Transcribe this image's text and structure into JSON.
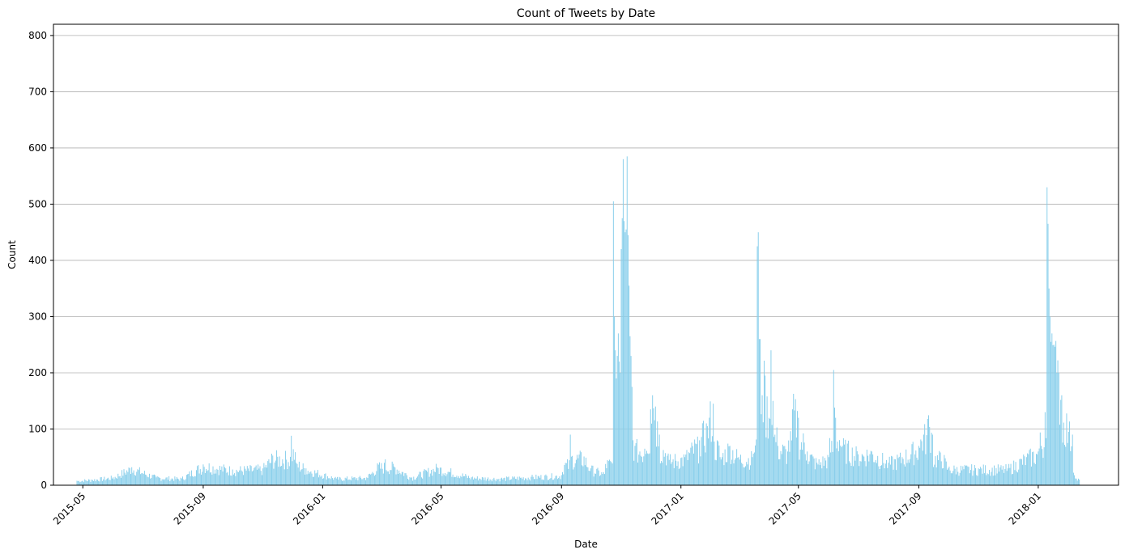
{
  "chart_data": {
    "type": "bar",
    "title": "Count of Tweets by Date",
    "xlabel": "Date",
    "ylabel": "Count",
    "ylim": [
      0,
      820
    ],
    "xlim": [
      "2015-04-01",
      "2018-03-24"
    ],
    "grid": "y",
    "bar_color": "#87ceeb",
    "y_ticks": [
      0,
      100,
      200,
      300,
      400,
      500,
      600,
      700,
      800
    ],
    "x_ticks": [
      "2015-05",
      "2015-09",
      "2016-01",
      "2016-05",
      "2016-09",
      "2017-01",
      "2017-05",
      "2017-09",
      "2018-01"
    ],
    "series": [
      {
        "name": "",
        "description_points": [
          [
            "2015-04-25",
            8
          ],
          [
            "2015-05-10",
            10
          ],
          [
            "2015-06-01",
            14
          ],
          [
            "2015-06-20",
            32
          ],
          [
            "2015-07-15",
            14
          ],
          [
            "2015-08-10",
            12
          ],
          [
            "2015-09-01",
            37
          ],
          [
            "2015-10-01",
            28
          ],
          [
            "2015-11-01",
            30
          ],
          [
            "2015-11-30",
            88
          ],
          [
            "2015-12-05",
            40
          ],
          [
            "2015-12-15",
            30
          ],
          [
            "2016-01-15",
            12
          ],
          [
            "2016-02-15",
            14
          ],
          [
            "2016-03-05",
            46
          ],
          [
            "2016-04-01",
            14
          ],
          [
            "2016-04-27",
            32
          ],
          [
            "2016-06-01",
            14
          ],
          [
            "2016-07-01",
            12
          ],
          [
            "2016-08-01",
            15
          ],
          [
            "2016-09-01",
            18
          ],
          [
            "2016-09-10",
            90
          ],
          [
            "2016-10-01",
            30
          ],
          [
            "2016-10-15",
            20
          ],
          [
            "2016-10-24",
            505
          ],
          [
            "2016-10-25",
            300
          ],
          [
            "2016-10-26",
            240
          ],
          [
            "2016-10-27",
            190
          ],
          [
            "2016-10-28",
            230
          ],
          [
            "2016-10-29",
            270
          ],
          [
            "2016-10-30",
            220
          ],
          [
            "2016-10-31",
            200
          ],
          [
            "2016-11-01",
            420
          ],
          [
            "2016-11-02",
            475
          ],
          [
            "2016-11-03",
            580
          ],
          [
            "2016-11-04",
            470
          ],
          [
            "2016-11-05",
            450
          ],
          [
            "2016-11-06",
            455
          ],
          [
            "2016-11-07",
            585
          ],
          [
            "2016-11-08",
            445
          ],
          [
            "2016-11-09",
            355
          ],
          [
            "2016-11-10",
            265
          ],
          [
            "2016-11-11",
            230
          ],
          [
            "2016-11-12",
            175
          ],
          [
            "2016-11-13",
            80
          ],
          [
            "2016-11-15",
            70
          ],
          [
            "2016-11-20",
            60
          ],
          [
            "2016-11-25",
            65
          ],
          [
            "2016-12-01",
            135
          ],
          [
            "2016-12-03",
            160
          ],
          [
            "2016-12-06",
            140
          ],
          [
            "2016-12-10",
            90
          ],
          [
            "2016-12-20",
            45
          ],
          [
            "2017-01-05",
            50
          ],
          [
            "2017-01-20",
            80
          ],
          [
            "2017-01-28",
            105
          ],
          [
            "2017-02-03",
            145
          ],
          [
            "2017-02-10",
            50
          ],
          [
            "2017-02-20",
            70
          ],
          [
            "2017-03-01",
            50
          ],
          [
            "2017-03-15",
            50
          ],
          [
            "2017-03-20",
            425
          ],
          [
            "2017-03-21",
            450
          ],
          [
            "2017-03-22",
            260
          ],
          [
            "2017-03-23",
            260
          ],
          [
            "2017-03-25",
            160
          ],
          [
            "2017-03-28",
            195
          ],
          [
            "2017-04-01",
            120
          ],
          [
            "2017-04-03",
            240
          ],
          [
            "2017-04-05",
            150
          ],
          [
            "2017-04-10",
            70
          ],
          [
            "2017-04-20",
            60
          ],
          [
            "2017-04-25",
            135
          ],
          [
            "2017-05-01",
            120
          ],
          [
            "2017-05-10",
            60
          ],
          [
            "2017-05-20",
            40
          ],
          [
            "2017-06-01",
            50
          ],
          [
            "2017-06-06",
            205
          ],
          [
            "2017-06-08",
            120
          ],
          [
            "2017-06-15",
            70
          ],
          [
            "2017-07-01",
            55
          ],
          [
            "2017-07-15",
            60
          ],
          [
            "2017-08-01",
            40
          ],
          [
            "2017-08-15",
            50
          ],
          [
            "2017-09-01",
            70
          ],
          [
            "2017-09-10",
            118
          ],
          [
            "2017-09-15",
            90
          ],
          [
            "2017-10-01",
            30
          ],
          [
            "2017-11-01",
            30
          ],
          [
            "2017-12-01",
            30
          ],
          [
            "2017-12-20",
            50
          ],
          [
            "2018-01-01",
            60
          ],
          [
            "2018-01-08",
            130
          ],
          [
            "2018-01-10",
            530
          ],
          [
            "2018-01-11",
            465
          ],
          [
            "2018-01-12",
            350
          ],
          [
            "2018-01-13",
            300
          ],
          [
            "2018-01-14",
            255
          ],
          [
            "2018-01-15",
            270
          ],
          [
            "2018-01-17",
            250
          ],
          [
            "2018-01-20",
            200
          ],
          [
            "2018-01-22",
            200
          ],
          [
            "2018-01-25",
            160
          ],
          [
            "2018-02-01",
            95
          ],
          [
            "2018-02-05",
            90
          ],
          [
            "2018-02-08",
            12
          ],
          [
            "2018-02-12",
            10
          ]
        ]
      }
    ]
  }
}
